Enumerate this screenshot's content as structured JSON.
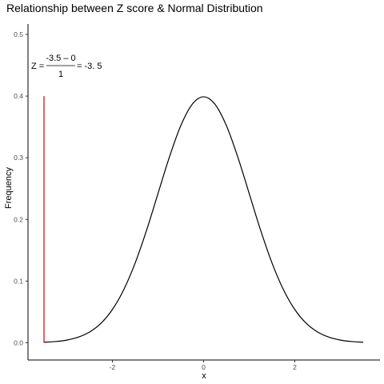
{
  "chart_data": {
    "type": "line",
    "title": "Relationship between Z score & Normal Distribution",
    "xlabel": "x",
    "ylabel": "Frequency",
    "xlim": [
      -3.5,
      3.5
    ],
    "ylim": [
      0,
      0.5
    ],
    "x_ticks": [
      "-2",
      "0",
      "2"
    ],
    "x_tick_values": [
      -2,
      0,
      2
    ],
    "y_ticks": [
      "0.0",
      "0.1",
      "0.2",
      "0.3",
      "0.4",
      "0.5"
    ],
    "y_tick_values": [
      0,
      0.1,
      0.2,
      0.3,
      0.4,
      0.5
    ],
    "grid": false,
    "series": [
      {
        "type": "line",
        "color": "#000000",
        "x": [
          -3.5,
          -3.25,
          -3.0,
          -2.75,
          -2.5,
          -2.25,
          -2.0,
          -1.75,
          -1.5,
          -1.25,
          -1.0,
          -0.75,
          -0.5,
          -0.25,
          0.0,
          0.25,
          0.5,
          0.75,
          1.0,
          1.25,
          1.5,
          1.75,
          2.0,
          2.25,
          2.5,
          2.75,
          3.0,
          3.25,
          3.5
        ],
        "y": [
          0.0009,
          0.002,
          0.0044,
          0.0091,
          0.0175,
          0.0317,
          0.054,
          0.0863,
          0.1295,
          0.1826,
          0.242,
          0.3011,
          0.3521,
          0.3867,
          0.3989,
          0.3867,
          0.3521,
          0.3011,
          0.242,
          0.1826,
          0.1295,
          0.0863,
          0.054,
          0.0317,
          0.0175,
          0.0091,
          0.0044,
          0.002,
          0.0009
        ]
      },
      {
        "type": "vline",
        "color": "#cc0000",
        "x": [
          -3.5,
          -3.5
        ],
        "y": [
          0,
          0.4
        ]
      }
    ],
    "annotation": {
      "prefix": "Z =",
      "numerator": "-3.5 – 0",
      "denominator": "1",
      "suffix": "= -3. 5"
    }
  }
}
